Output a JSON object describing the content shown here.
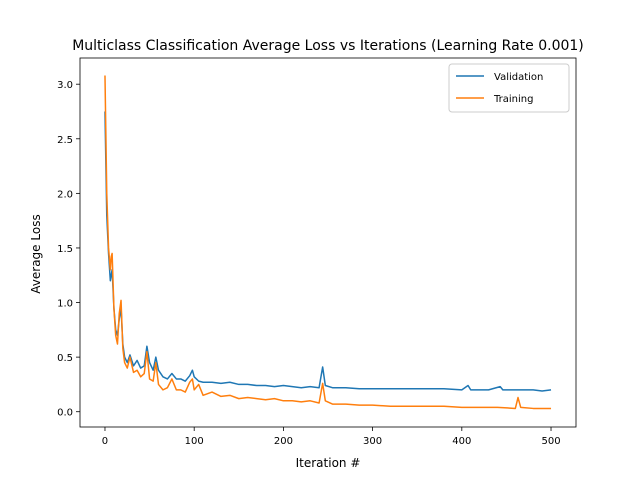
{
  "chart_data": {
    "type": "line",
    "title": "Multiclass Classification Average Loss vs Iterations (Learning Rate 0.001)",
    "xlabel": "Iteration #",
    "ylabel": "Average Loss",
    "xlim": [
      -28,
      528
    ],
    "ylim": [
      -0.14,
      3.24
    ],
    "xticks": [
      0,
      100,
      200,
      300,
      400,
      500
    ],
    "yticks": [
      0.0,
      0.5,
      1.0,
      1.5,
      2.0,
      2.5,
      3.0
    ],
    "ytick_labels": [
      "0.0",
      "0.5",
      "1.0",
      "1.5",
      "2.0",
      "2.5",
      "3.0"
    ],
    "grid": false,
    "legend_position": "upper right",
    "series": [
      {
        "name": "Validation",
        "color": "#1f77b4",
        "points": [
          [
            0,
            2.75
          ],
          [
            2,
            1.8
          ],
          [
            4,
            1.45
          ],
          [
            6,
            1.2
          ],
          [
            8,
            1.3
          ],
          [
            10,
            0.95
          ],
          [
            12,
            0.75
          ],
          [
            14,
            0.7
          ],
          [
            16,
            0.85
          ],
          [
            18,
            0.95
          ],
          [
            20,
            0.62
          ],
          [
            22,
            0.5
          ],
          [
            25,
            0.45
          ],
          [
            28,
            0.52
          ],
          [
            32,
            0.42
          ],
          [
            36,
            0.47
          ],
          [
            40,
            0.4
          ],
          [
            44,
            0.42
          ],
          [
            47,
            0.6
          ],
          [
            50,
            0.45
          ],
          [
            54,
            0.38
          ],
          [
            57,
            0.5
          ],
          [
            60,
            0.38
          ],
          [
            65,
            0.32
          ],
          [
            70,
            0.3
          ],
          [
            75,
            0.35
          ],
          [
            80,
            0.3
          ],
          [
            85,
            0.3
          ],
          [
            90,
            0.28
          ],
          [
            95,
            0.33
          ],
          [
            98,
            0.38
          ],
          [
            100,
            0.32
          ],
          [
            105,
            0.28
          ],
          [
            110,
            0.27
          ],
          [
            120,
            0.27
          ],
          [
            130,
            0.26
          ],
          [
            140,
            0.27
          ],
          [
            150,
            0.25
          ],
          [
            160,
            0.25
          ],
          [
            170,
            0.24
          ],
          [
            180,
            0.24
          ],
          [
            190,
            0.23
          ],
          [
            200,
            0.24
          ],
          [
            210,
            0.23
          ],
          [
            220,
            0.22
          ],
          [
            230,
            0.23
          ],
          [
            240,
            0.22
          ],
          [
            244,
            0.41
          ],
          [
            247,
            0.24
          ],
          [
            255,
            0.22
          ],
          [
            270,
            0.22
          ],
          [
            285,
            0.21
          ],
          [
            300,
            0.21
          ],
          [
            320,
            0.21
          ],
          [
            340,
            0.21
          ],
          [
            360,
            0.21
          ],
          [
            380,
            0.21
          ],
          [
            400,
            0.2
          ],
          [
            407,
            0.24
          ],
          [
            410,
            0.2
          ],
          [
            430,
            0.2
          ],
          [
            443,
            0.23
          ],
          [
            446,
            0.2
          ],
          [
            460,
            0.2
          ],
          [
            480,
            0.2
          ],
          [
            490,
            0.19
          ],
          [
            500,
            0.2
          ]
        ]
      },
      {
        "name": "Training",
        "color": "#ff7f0e",
        "points": [
          [
            0,
            3.08
          ],
          [
            2,
            2.0
          ],
          [
            4,
            1.5
          ],
          [
            6,
            1.3
          ],
          [
            7,
            1.42
          ],
          [
            8,
            1.45
          ],
          [
            10,
            0.95
          ],
          [
            12,
            0.7
          ],
          [
            14,
            0.62
          ],
          [
            16,
            0.9
          ],
          [
            18,
            1.02
          ],
          [
            20,
            0.58
          ],
          [
            22,
            0.45
          ],
          [
            25,
            0.4
          ],
          [
            28,
            0.5
          ],
          [
            32,
            0.36
          ],
          [
            36,
            0.38
          ],
          [
            40,
            0.32
          ],
          [
            44,
            0.35
          ],
          [
            47,
            0.55
          ],
          [
            50,
            0.3
          ],
          [
            54,
            0.28
          ],
          [
            57,
            0.45
          ],
          [
            60,
            0.25
          ],
          [
            65,
            0.2
          ],
          [
            70,
            0.22
          ],
          [
            75,
            0.3
          ],
          [
            80,
            0.2
          ],
          [
            85,
            0.2
          ],
          [
            90,
            0.18
          ],
          [
            95,
            0.27
          ],
          [
            98,
            0.3
          ],
          [
            100,
            0.2
          ],
          [
            105,
            0.25
          ],
          [
            110,
            0.15
          ],
          [
            120,
            0.18
          ],
          [
            130,
            0.14
          ],
          [
            140,
            0.15
          ],
          [
            150,
            0.12
          ],
          [
            160,
            0.13
          ],
          [
            170,
            0.12
          ],
          [
            180,
            0.11
          ],
          [
            190,
            0.12
          ],
          [
            200,
            0.1
          ],
          [
            210,
            0.1
          ],
          [
            220,
            0.09
          ],
          [
            230,
            0.1
          ],
          [
            240,
            0.08
          ],
          [
            244,
            0.26
          ],
          [
            247,
            0.1
          ],
          [
            255,
            0.07
          ],
          [
            270,
            0.07
          ],
          [
            285,
            0.06
          ],
          [
            300,
            0.06
          ],
          [
            320,
            0.05
          ],
          [
            340,
            0.05
          ],
          [
            360,
            0.05
          ],
          [
            380,
            0.05
          ],
          [
            400,
            0.04
          ],
          [
            420,
            0.04
          ],
          [
            440,
            0.04
          ],
          [
            460,
            0.03
          ],
          [
            463,
            0.13
          ],
          [
            466,
            0.04
          ],
          [
            480,
            0.03
          ],
          [
            490,
            0.03
          ],
          [
            500,
            0.03
          ]
        ]
      }
    ]
  }
}
